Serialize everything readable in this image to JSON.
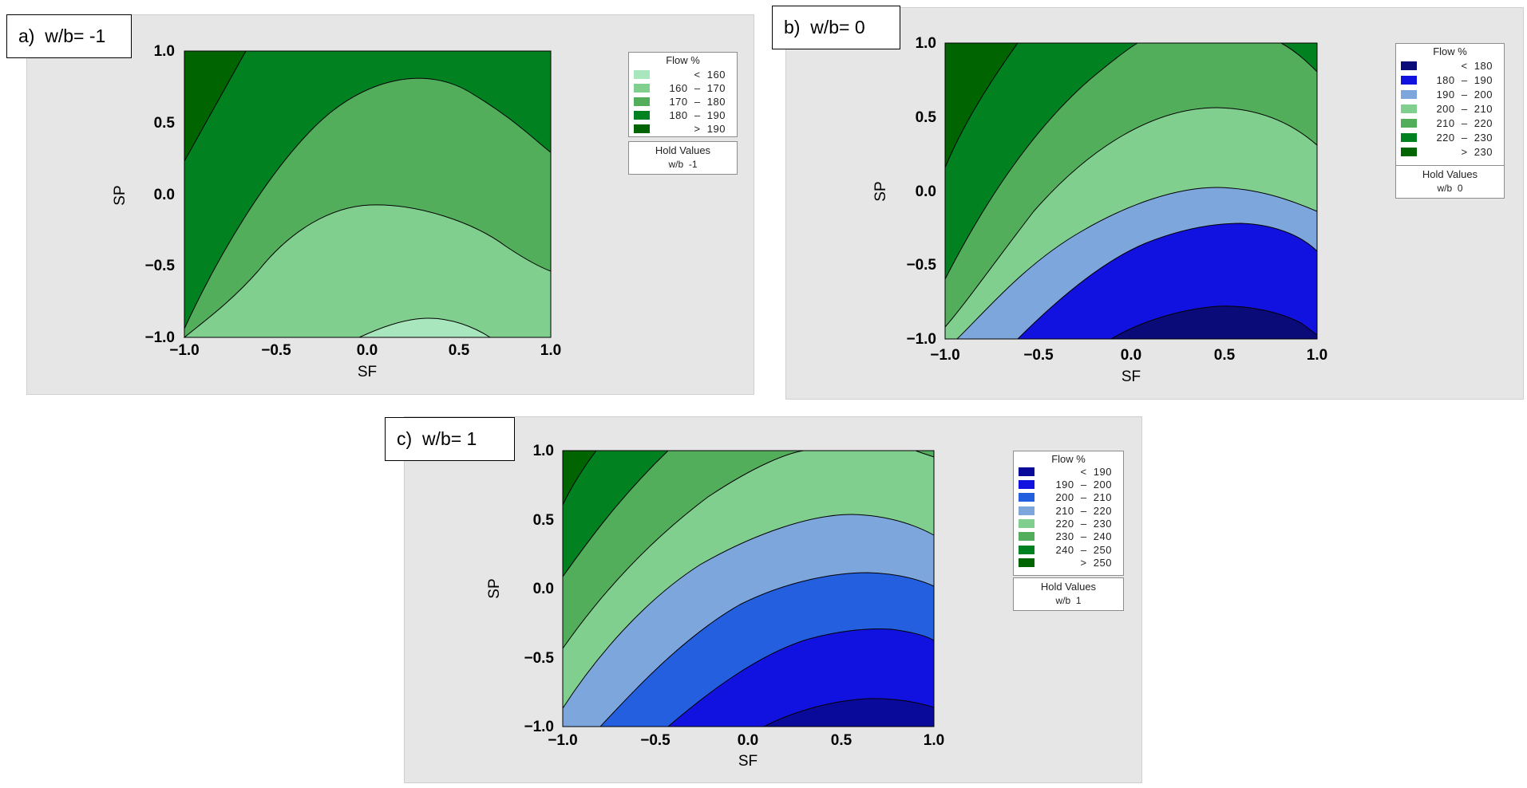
{
  "chart_data": [
    {
      "type": "contour",
      "panel_label": "a)  w/b= -1",
      "xlabel": "SF",
      "ylabel": "SP",
      "xlim": [
        -1.0,
        1.0
      ],
      "ylim": [
        -1.0,
        1.0
      ],
      "x_ticks": [
        "−1.0",
        "−0.5",
        "0.0",
        "0.5",
        "1.0"
      ],
      "y_ticks": [
        "1.0",
        "0.5",
        "0.0",
        "−0.5",
        "−1.0"
      ],
      "legend_title": "Flow %",
      "legend": [
        {
          "range": "<  160",
          "color": "#a8e6be"
        },
        {
          "range": "160  –  170",
          "color": "#80cf8e"
        },
        {
          "range": "170  –  180",
          "color": "#52ae5b"
        },
        {
          "range": "180  –  190",
          "color": "#028121"
        },
        {
          "range": ">  190",
          "color": "#006400"
        }
      ],
      "hold_title": "Hold Values",
      "hold_value": "w/b  -1",
      "regions_order_low_to_high": [
        "<160",
        "160-170",
        "170-180",
        "180-190",
        ">190"
      ]
    },
    {
      "type": "contour",
      "panel_label": "b)  w/b= 0",
      "xlabel": "SF",
      "ylabel": "SP",
      "xlim": [
        -1.0,
        1.0
      ],
      "ylim": [
        -1.0,
        1.0
      ],
      "x_ticks": [
        "−1.0",
        "−0.5",
        "0.0",
        "0.5",
        "1.0"
      ],
      "y_ticks": [
        "1.0",
        "0.5",
        "0.0",
        "−0.5",
        "−1.0"
      ],
      "legend_title": "Flow %",
      "legend": [
        {
          "range": "<  180",
          "color": "#0a0a78"
        },
        {
          "range": "180  –  190",
          "color": "#1212e0"
        },
        {
          "range": "190  –  200",
          "color": "#7ca6dc"
        },
        {
          "range": "200  –  210",
          "color": "#80cf8e"
        },
        {
          "range": "210  –  220",
          "color": "#52ae5b"
        },
        {
          "range": "220  –  230",
          "color": "#028121"
        },
        {
          "range": ">  230",
          "color": "#006400"
        }
      ],
      "hold_title": "Hold Values",
      "hold_value": "w/b  0"
    },
    {
      "type": "contour",
      "panel_label": "c)  w/b= 1",
      "xlabel": "SF",
      "ylabel": "SP",
      "xlim": [
        -1.0,
        1.0
      ],
      "ylim": [
        -1.0,
        1.0
      ],
      "x_ticks": [
        "−1.0",
        "−0.5",
        "0.0",
        "0.5",
        "1.0"
      ],
      "y_ticks": [
        "1.0",
        "0.5",
        "0.0",
        "−0.5",
        "−1.0"
      ],
      "legend_title": "Flow %",
      "legend": [
        {
          "range": "<  190",
          "color": "#0a0a9a"
        },
        {
          "range": "190  –  200",
          "color": "#1212e0"
        },
        {
          "range": "200  –  210",
          "color": "#245fe0"
        },
        {
          "range": "210  –  220",
          "color": "#7ca6dc"
        },
        {
          "range": "220  –  230",
          "color": "#80cf8e"
        },
        {
          "range": "230  –  240",
          "color": "#52ae5b"
        },
        {
          "range": "240  –  250",
          "color": "#028121"
        },
        {
          "range": ">  250",
          "color": "#006400"
        }
      ],
      "hold_title": "Hold Values",
      "hold_value": "w/b  1"
    }
  ]
}
